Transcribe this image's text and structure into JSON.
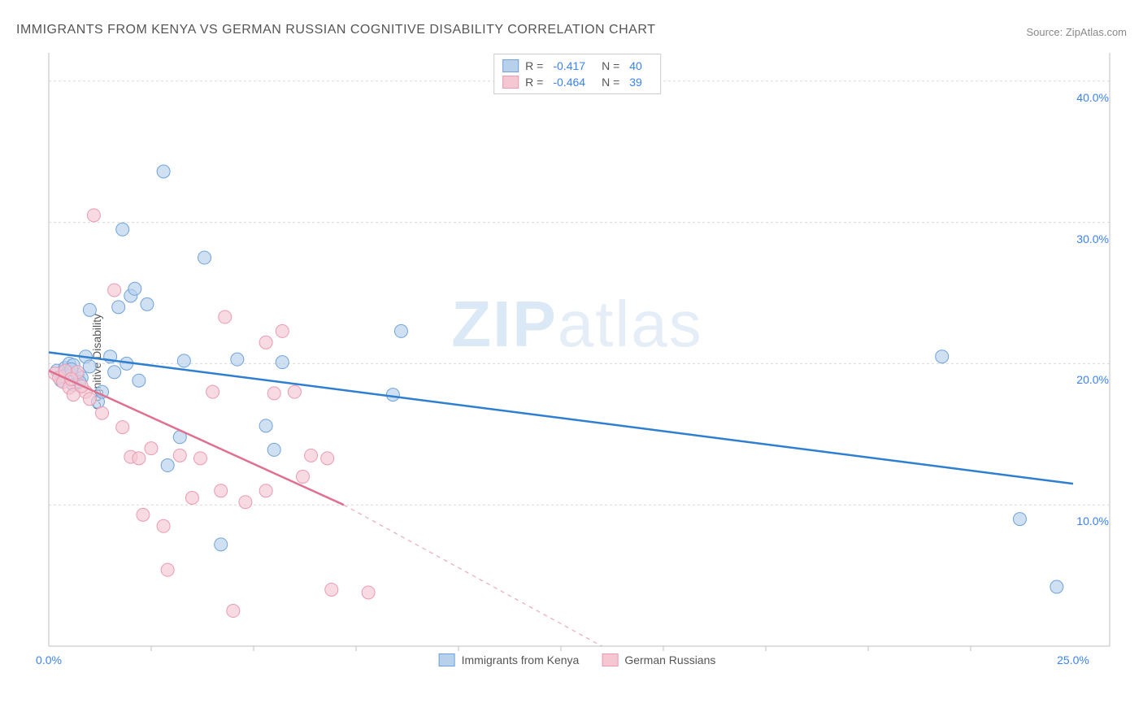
{
  "title": "IMMIGRANTS FROM KENYA VS GERMAN RUSSIAN COGNITIVE DISABILITY CORRELATION CHART",
  "source": "Source: ZipAtlas.com",
  "ylabel": "Cognitive Disability",
  "watermark": {
    "bold": "ZIP",
    "light": "atlas"
  },
  "chart": {
    "type": "scatter",
    "xlim": [
      0,
      25
    ],
    "ylim": [
      0,
      42
    ],
    "ytick_labels": [
      "10.0%",
      "20.0%",
      "30.0%",
      "40.0%"
    ],
    "ytick_values": [
      10,
      20,
      30,
      40
    ],
    "xtick_labels": [
      "0.0%",
      "25.0%"
    ],
    "xtick_values": [
      0,
      25
    ],
    "xtick_minor": [
      2.5,
      5,
      7.5,
      10,
      12.5,
      15,
      17.5,
      20,
      22.5
    ],
    "grid_color": "#d9d9d9",
    "axis_color": "#bfbfbf",
    "background_color": "#ffffff"
  },
  "series": [
    {
      "name": "Immigrants from Kenya",
      "color_fill": "#b7d0ec",
      "color_stroke": "#6fa3d9",
      "line_color": "#2f7fd1",
      "marker_radius": 8,
      "marker_opacity": 0.65,
      "r_value": "-0.417",
      "n_value": "40",
      "trend": {
        "x1": 0,
        "y1": 20.8,
        "x2": 25,
        "y2": 11.5,
        "dash_after_x": 25
      },
      "points": [
        [
          0.2,
          19.5
        ],
        [
          0.3,
          18.8
        ],
        [
          0.4,
          19.7
        ],
        [
          0.5,
          20.0
        ],
        [
          0.6,
          18.5
        ],
        [
          0.7,
          19.2
        ],
        [
          0.9,
          20.5
        ],
        [
          1.0,
          23.8
        ],
        [
          1.0,
          19.8
        ],
        [
          1.2,
          17.3
        ],
        [
          1.5,
          20.5
        ],
        [
          1.7,
          24.0
        ],
        [
          1.8,
          29.5
        ],
        [
          1.9,
          20.0
        ],
        [
          2.0,
          24.8
        ],
        [
          2.1,
          25.3
        ],
        [
          2.4,
          24.2
        ],
        [
          2.8,
          33.6
        ],
        [
          2.9,
          12.8
        ],
        [
          3.2,
          14.8
        ],
        [
          3.3,
          20.2
        ],
        [
          3.8,
          27.5
        ],
        [
          4.2,
          7.2
        ],
        [
          4.6,
          20.3
        ],
        [
          5.3,
          15.6
        ],
        [
          5.5,
          13.9
        ],
        [
          5.7,
          20.1
        ],
        [
          8.4,
          17.8
        ],
        [
          8.6,
          22.3
        ],
        [
          21.8,
          20.5
        ],
        [
          23.7,
          9.0
        ],
        [
          24.6,
          4.2
        ],
        [
          0.6,
          19.9
        ],
        [
          0.8,
          19.0
        ],
        [
          1.3,
          18.0
        ],
        [
          1.6,
          19.4
        ],
        [
          2.2,
          18.8
        ],
        [
          0.35,
          19.1
        ],
        [
          0.55,
          19.6
        ],
        [
          0.75,
          18.7
        ]
      ]
    },
    {
      "name": "German Russians",
      "color_fill": "#f5c7d3",
      "color_stroke": "#ea9ab2",
      "line_color": "#e0708f",
      "marker_radius": 8,
      "marker_opacity": 0.65,
      "r_value": "-0.464",
      "n_value": "39",
      "trend": {
        "x1": 0,
        "y1": 19.5,
        "x2": 7.2,
        "y2": 10.0,
        "dash_after_x": 7.2,
        "dash_x2": 13.5,
        "dash_y2": 0
      },
      "points": [
        [
          0.15,
          19.3
        ],
        [
          0.25,
          19.0
        ],
        [
          0.35,
          18.7
        ],
        [
          0.5,
          18.3
        ],
        [
          0.6,
          17.8
        ],
        [
          0.7,
          19.4
        ],
        [
          0.9,
          18.0
        ],
        [
          1.0,
          17.5
        ],
        [
          1.1,
          30.5
        ],
        [
          1.3,
          16.5
        ],
        [
          1.6,
          25.2
        ],
        [
          1.8,
          15.5
        ],
        [
          2.0,
          13.4
        ],
        [
          2.2,
          13.3
        ],
        [
          2.3,
          9.3
        ],
        [
          2.5,
          14.0
        ],
        [
          2.8,
          8.5
        ],
        [
          2.9,
          5.4
        ],
        [
          3.2,
          13.5
        ],
        [
          3.5,
          10.5
        ],
        [
          3.7,
          13.3
        ],
        [
          4.0,
          18.0
        ],
        [
          4.2,
          11.0
        ],
        [
          4.3,
          23.3
        ],
        [
          4.5,
          2.5
        ],
        [
          4.8,
          10.2
        ],
        [
          5.3,
          11.0
        ],
        [
          5.3,
          21.5
        ],
        [
          5.5,
          17.9
        ],
        [
          5.7,
          22.3
        ],
        [
          6.0,
          18.0
        ],
        [
          6.2,
          12.0
        ],
        [
          6.4,
          13.5
        ],
        [
          6.8,
          13.3
        ],
        [
          6.9,
          4.0
        ],
        [
          7.8,
          3.8
        ],
        [
          0.4,
          19.5
        ],
        [
          0.55,
          18.9
        ],
        [
          0.8,
          18.4
        ]
      ]
    }
  ],
  "legend_bottom": [
    {
      "label": "Immigrants from Kenya",
      "fill": "#b7d0ec",
      "stroke": "#6fa3d9"
    },
    {
      "label": "German Russians",
      "fill": "#f5c7d3",
      "stroke": "#ea9ab2"
    }
  ]
}
